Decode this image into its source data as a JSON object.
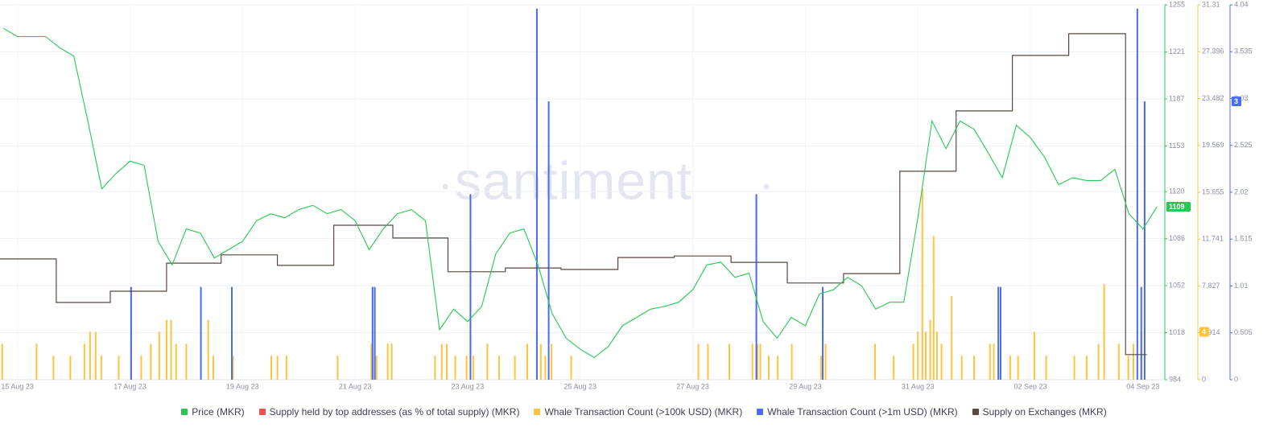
{
  "chart_data": {
    "type": "line",
    "watermark": "santiment",
    "xlim": [
      -0.31,
      20.36
    ],
    "xticks": [
      {
        "value": 0,
        "label": "15 Aug 23"
      },
      {
        "value": 2,
        "label": "17 Aug 23"
      },
      {
        "value": 4,
        "label": "19 Aug 23"
      },
      {
        "value": 6,
        "label": "21 Aug 23"
      },
      {
        "value": 8,
        "label": "23 Aug 23"
      },
      {
        "value": 10,
        "label": "25 Aug 23"
      },
      {
        "value": 12,
        "label": "27 Aug 23"
      },
      {
        "value": 14,
        "label": "29 Aug 23"
      },
      {
        "value": 16,
        "label": "31 Aug 23"
      },
      {
        "value": 18,
        "label": "02 Sep 23"
      },
      {
        "value": 20,
        "label": "04 Sep 23"
      }
    ],
    "ylim": [
      984,
      1255
    ],
    "yticks": [
      1255,
      1221,
      1187,
      1153,
      1120,
      1086,
      1052,
      1018,
      984
    ],
    "y2lim": [
      0,
      31.31
    ],
    "y2ticks": [
      31.31,
      27.396,
      23.482,
      19.569,
      15.655,
      11.741,
      7.827,
      3.914,
      0
    ],
    "y3lim": [
      0,
      4.04
    ],
    "y3ticks": [
      4.04,
      3.535,
      3.03,
      2.525,
      2.02,
      1.515,
      1.01,
      0.505,
      0
    ],
    "y4lim": [
      0,
      100
    ],
    "grid": true,
    "series": [
      {
        "name": "Price (MKR)",
        "type": "line",
        "axis": "y",
        "color": "#26c953",
        "x": [
          -0.25,
          0,
          0.25,
          0.5,
          0.75,
          1,
          1.25,
          1.5,
          1.75,
          2,
          2.25,
          2.5,
          2.75,
          3,
          3.25,
          3.5,
          3.75,
          4,
          4.25,
          4.5,
          4.75,
          5,
          5.25,
          5.5,
          5.75,
          6,
          6.25,
          6.5,
          6.75,
          7,
          7.25,
          7.5,
          7.75,
          8,
          8.25,
          8.5,
          8.75,
          9,
          9.25,
          9.5,
          9.75,
          10,
          10.25,
          10.5,
          10.75,
          11,
          11.25,
          11.5,
          11.75,
          12,
          12.25,
          12.5,
          12.75,
          13,
          13.25,
          13.5,
          13.75,
          14,
          14.25,
          14.5,
          14.75,
          15,
          15.25,
          15.5,
          15.75,
          16,
          16.25,
          16.5,
          16.75,
          17,
          17.25,
          17.5,
          17.75,
          18,
          18.25,
          18.5,
          18.75,
          19,
          19.25,
          19.5,
          19.75,
          20,
          20.25
        ],
        "values": [
          1238,
          1232,
          1232,
          1232,
          1224,
          1218,
          1171,
          1122,
          1133,
          1142,
          1139,
          1084,
          1067,
          1093,
          1090,
          1072,
          1078,
          1084,
          1099,
          1104,
          1101,
          1107,
          1110,
          1104,
          1107,
          1099,
          1078,
          1093,
          1104,
          1107,
          1099,
          1020,
          1035,
          1026,
          1037,
          1075,
          1090,
          1093,
          1067,
          1032,
          1014,
          1006,
          1000,
          1008,
          1023,
          1029,
          1035,
          1037,
          1040,
          1049,
          1067,
          1069,
          1058,
          1061,
          1026,
          1014,
          1029,
          1023,
          1046,
          1049,
          1058,
          1052,
          1035,
          1040,
          1040,
          1101,
          1171,
          1151,
          1171,
          1165,
          1148,
          1130,
          1168,
          1159,
          1145,
          1125,
          1130,
          1128,
          1128,
          1136,
          1104,
          1093,
          1109
        ]
      },
      {
        "name": "Supply held by top addresses (as % of total supply) (MKR)",
        "type": "line",
        "axis": "y",
        "color": "#ef5350",
        "x": [],
        "values": []
      },
      {
        "name": "Whale Transaction Count (>100k USD) (MKR)",
        "type": "bar",
        "axis": "y2",
        "color": "#ffc43d",
        "x": [
          -0.27,
          0.34,
          0.64,
          0.94,
          1.19,
          1.29,
          1.39,
          1.49,
          1.8,
          2.02,
          2.2,
          2.37,
          2.52,
          2.65,
          2.73,
          2.82,
          3,
          3.39,
          3.48,
          3.83,
          4.51,
          4.62,
          4.78,
          5.69,
          6.29,
          6.38,
          6.58,
          6.65,
          7.42,
          7.54,
          7.63,
          7.78,
          7.98,
          8.1,
          8.35,
          8.56,
          8.84,
          9.06,
          9.23,
          9.3,
          9.38,
          9.49,
          9.84,
          12.1,
          12.27,
          12.65,
          13.06,
          13.15,
          13.2,
          13.35,
          13.51,
          13.76,
          14.28,
          14.36,
          15.24,
          15.57,
          15.92,
          16,
          16.08,
          16.14,
          16.22,
          16.28,
          16.34,
          16.42,
          16.6,
          16.78,
          17,
          17.28,
          17.35,
          17.64,
          17.78,
          18.07,
          18.28,
          18.78,
          19,
          19.21,
          19.31,
          19.57,
          19.74,
          19.83,
          19.97
        ],
        "values": [
          3,
          3,
          2,
          2,
          3,
          4,
          4,
          2,
          2,
          3,
          2,
          3,
          4,
          5,
          5,
          3,
          3,
          5,
          2,
          2,
          2,
          2,
          2,
          2,
          3,
          2,
          3,
          3,
          2,
          3,
          3,
          2,
          2,
          2,
          3,
          2,
          2,
          3,
          4,
          3,
          2,
          3,
          2,
          3,
          3,
          3,
          3,
          3,
          3,
          2,
          2,
          3,
          2,
          3,
          3,
          2,
          3,
          4,
          16,
          4,
          5,
          12,
          4,
          3,
          7,
          2,
          2,
          3,
          3,
          2,
          2,
          4,
          2,
          2,
          2,
          3,
          8,
          3,
          2,
          3,
          4
        ]
      },
      {
        "name": "Whale Transaction Count (>1m USD) (MKR)",
        "type": "bar",
        "axis": "y3",
        "color": "#4a6cf0",
        "x": [
          2.02,
          3.26,
          3.81,
          6.31,
          6.35,
          8.05,
          9.23,
          9.44,
          13.13,
          14.31,
          17.43,
          17.47,
          19.9,
          19.97,
          20.03
        ],
        "values": [
          1,
          1,
          1,
          1,
          1,
          2,
          4,
          3,
          2,
          1,
          1,
          1,
          4,
          1,
          3
        ]
      },
      {
        "name": "Supply on Exchanges (MKR)",
        "type": "step",
        "axis": "y4",
        "color": "#5b4740",
        "x": [
          -0.31,
          0.69,
          1.65,
          2.65,
          3.62,
          4.62,
          5.62,
          6.67,
          7.65,
          8.67,
          9.66,
          10.67,
          11.67,
          12.68,
          13.68,
          14.68,
          15.68,
          16.68,
          17.68,
          18.68,
          19.69,
          20.07
        ],
        "values": [
          32.2,
          20.6,
          23.6,
          31.1,
          33.3,
          30.5,
          41.2,
          37.8,
          28.8,
          29.8,
          29.4,
          32.6,
          33,
          31.3,
          25.8,
          28.3,
          55.6,
          71.7,
          86.5,
          92.3,
          6.7,
          6.7
        ]
      }
    ]
  }
}
